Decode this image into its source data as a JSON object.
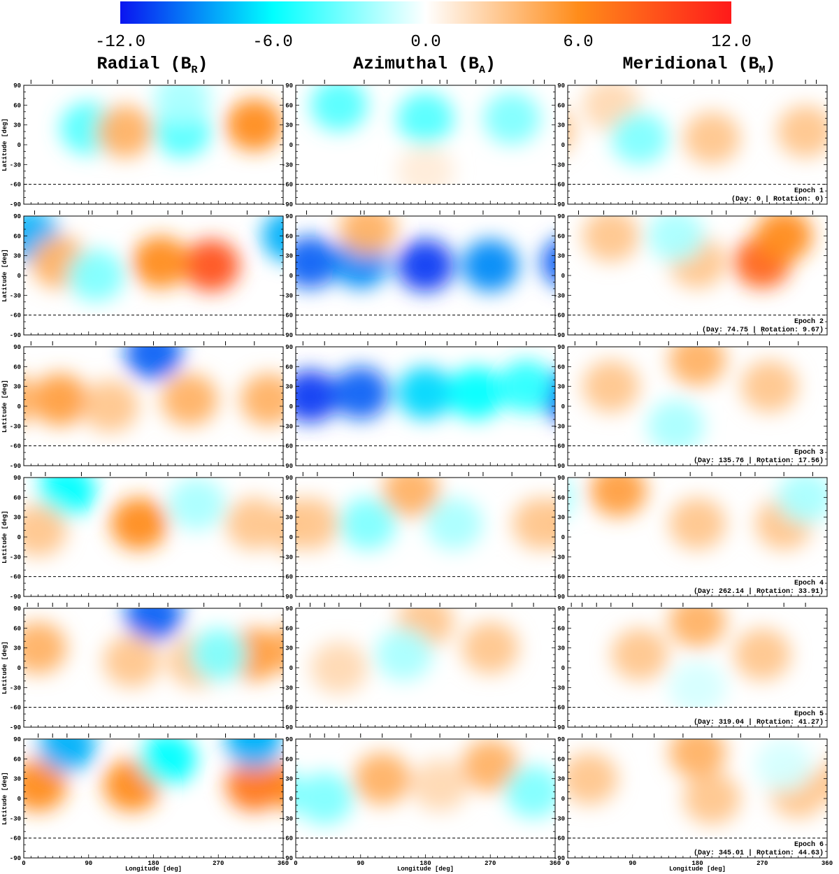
{
  "colorbar": {
    "ticks": [
      "-12.0",
      "-6.0",
      "0.0",
      "6.0",
      "12.0"
    ],
    "tick_values": [
      -12,
      -6,
      0,
      6,
      12
    ],
    "range": [
      -12,
      12
    ],
    "colors": {
      "negative_max": "#0a14f0",
      "mid_negative": "#00ffff",
      "zero": "#ffffff",
      "mid_positive": "#ff8c1a",
      "positive_max": "#ff1a1a"
    }
  },
  "columns": [
    {
      "title": "Radial (B",
      "subscript": "R",
      "suffix": ")"
    },
    {
      "title": "Azimuthal (B",
      "subscript": "A",
      "suffix": ")"
    },
    {
      "title": "Meridional (B",
      "subscript": "M",
      "suffix": ")"
    }
  ],
  "axes": {
    "ylabel": "Latitude [deg]",
    "xlabel": "Longitude [deg]",
    "yticks": [
      "90",
      "60",
      "30",
      "0",
      "-30",
      "-60",
      "-90"
    ],
    "xticks": [
      "0",
      "90",
      "180",
      "270",
      "360"
    ],
    "ylim": [
      -90,
      90
    ],
    "xlim": [
      0,
      360
    ],
    "dashed_latitude": -60
  },
  "epochs": [
    {
      "name": "Epoch 1",
      "detail": "(Day: 0 | Rotation: 0)"
    },
    {
      "name": "Epoch 2",
      "detail": "(Day: 74.75 | Rotation: 9.67)"
    },
    {
      "name": "Epoch 3",
      "detail": "(Day: 135.76 | Rotation: 17.56)"
    },
    {
      "name": "Epoch 4",
      "detail": "(Day: 262.14 | Rotation: 33.91)"
    },
    {
      "name": "Epoch 5",
      "detail": "(Day: 319.04 | Rotation: 41.27)"
    },
    {
      "name": "Epoch 6",
      "detail": "(Day: 345.01 | Rotation: 44.63)"
    }
  ],
  "chart_data": {
    "type": "heatmap",
    "value_range": [
      -12,
      12
    ],
    "x_range": [
      0,
      360
    ],
    "y_range": [
      -90,
      90
    ],
    "observation_phase_ticks": [
      [
        10,
        40,
        95,
        130,
        175,
        200,
        210,
        250,
        275,
        285,
        330,
        345
      ],
      [
        15,
        50,
        90,
        95,
        130,
        150,
        200,
        220,
        260,
        310,
        340
      ],
      [
        10,
        40,
        100,
        140,
        180,
        210,
        250,
        280,
        320
      ],
      [
        10,
        30,
        80,
        120,
        170,
        200,
        240,
        260,
        300,
        340
      ],
      [
        5,
        20,
        40,
        60,
        90,
        130,
        160,
        200,
        250,
        300,
        330
      ],
      [
        20,
        40,
        60,
        90,
        120,
        160,
        200,
        240,
        280,
        320,
        350
      ]
    ],
    "maps": [
      [
        [
          {
            "lon": 90,
            "lat": 25,
            "v": -4
          },
          {
            "lon": 140,
            "lat": 20,
            "v": 4
          },
          {
            "lon": 220,
            "lat": 20,
            "v": -4
          },
          {
            "lon": 320,
            "lat": 30,
            "v": 6
          },
          {
            "lon": 220,
            "lat": 70,
            "v": -2
          }
        ],
        [
          {
            "lon": 180,
            "lat": 40,
            "v": -4
          },
          {
            "lon": 60,
            "lat": 60,
            "v": -4
          },
          {
            "lon": 300,
            "lat": 40,
            "v": -3
          },
          {
            "lon": 180,
            "lat": -40,
            "v": 1
          }
        ],
        [
          {
            "lon": 60,
            "lat": 60,
            "v": 2
          },
          {
            "lon": 200,
            "lat": 10,
            "v": 3
          },
          {
            "lon": 330,
            "lat": 20,
            "v": 3
          },
          {
            "lon": 100,
            "lat": 10,
            "v": -3
          }
        ]
      ],
      [
        [
          {
            "lon": 10,
            "lat": 60,
            "v": -8
          },
          {
            "lon": 260,
            "lat": 15,
            "v": 9
          },
          {
            "lon": 190,
            "lat": 20,
            "v": 6
          },
          {
            "lon": 50,
            "lat": 20,
            "v": 4
          },
          {
            "lon": 100,
            "lat": 0,
            "v": -3
          }
        ],
        [
          {
            "lon": 180,
            "lat": 15,
            "v": -11
          },
          {
            "lon": 20,
            "lat": 20,
            "v": -10
          },
          {
            "lon": 90,
            "lat": 20,
            "v": -9
          },
          {
            "lon": 270,
            "lat": 15,
            "v": -9
          },
          {
            "lon": 100,
            "lat": 70,
            "v": 4
          }
        ],
        [
          {
            "lon": 270,
            "lat": 20,
            "v": 8
          },
          {
            "lon": 300,
            "lat": 60,
            "v": 6
          },
          {
            "lon": 180,
            "lat": 20,
            "v": 3
          },
          {
            "lon": 60,
            "lat": 60,
            "v": 3
          },
          {
            "lon": 150,
            "lat": 60,
            "v": -2
          }
        ]
      ],
      [
        [
          {
            "lon": 180,
            "lat": 80,
            "v": -10
          },
          {
            "lon": 50,
            "lat": 10,
            "v": 5
          },
          {
            "lon": 230,
            "lat": 10,
            "v": 4
          },
          {
            "lon": 340,
            "lat": 10,
            "v": 4
          },
          {
            "lon": 120,
            "lat": 0,
            "v": 3
          }
        ],
        [
          {
            "lon": 20,
            "lat": 15,
            "v": -11
          },
          {
            "lon": 90,
            "lat": 20,
            "v": -10
          },
          {
            "lon": 180,
            "lat": 20,
            "v": -7
          },
          {
            "lon": 250,
            "lat": 20,
            "v": -6
          },
          {
            "lon": 320,
            "lat": 30,
            "v": -5
          }
        ],
        [
          {
            "lon": 180,
            "lat": 70,
            "v": 4
          },
          {
            "lon": 60,
            "lat": 30,
            "v": 3
          },
          {
            "lon": 280,
            "lat": 30,
            "v": 3
          },
          {
            "lon": 150,
            "lat": -30,
            "v": -2
          }
        ]
      ],
      [
        [
          {
            "lon": 60,
            "lat": 70,
            "v": -6
          },
          {
            "lon": 160,
            "lat": 20,
            "v": 6
          },
          {
            "lon": 20,
            "lat": 10,
            "v": 3
          },
          {
            "lon": 320,
            "lat": 20,
            "v": 3
          },
          {
            "lon": 240,
            "lat": 50,
            "v": -2
          }
        ],
        [
          {
            "lon": 160,
            "lat": 70,
            "v": 4
          },
          {
            "lon": 20,
            "lat": 20,
            "v": 3
          },
          {
            "lon": 340,
            "lat": 20,
            "v": 3
          },
          {
            "lon": 100,
            "lat": 20,
            "v": -3
          },
          {
            "lon": 220,
            "lat": 20,
            "v": -2
          }
        ],
        [
          {
            "lon": 70,
            "lat": 70,
            "v": 5
          },
          {
            "lon": 180,
            "lat": 20,
            "v": 3
          },
          {
            "lon": 300,
            "lat": 20,
            "v": 3
          },
          {
            "lon": 330,
            "lat": 60,
            "v": -2
          }
        ]
      ],
      [
        [
          {
            "lon": 180,
            "lat": 80,
            "v": -10
          },
          {
            "lon": 20,
            "lat": 30,
            "v": 4
          },
          {
            "lon": 320,
            "lat": 20,
            "v": 5
          },
          {
            "lon": 150,
            "lat": 10,
            "v": 3
          },
          {
            "lon": 240,
            "lat": 10,
            "v": 3
          },
          {
            "lon": 270,
            "lat": 20,
            "v": -3
          }
        ],
        [
          {
            "lon": 180,
            "lat": 70,
            "v": 3
          },
          {
            "lon": 270,
            "lat": 30,
            "v": 3
          },
          {
            "lon": 150,
            "lat": 20,
            "v": -2
          },
          {
            "lon": 60,
            "lat": 0,
            "v": 2
          }
        ],
        [
          {
            "lon": 180,
            "lat": 70,
            "v": 4
          },
          {
            "lon": 100,
            "lat": 20,
            "v": 3
          },
          {
            "lon": 270,
            "lat": 20,
            "v": 3
          },
          {
            "lon": 180,
            "lat": -30,
            "v": -1
          }
        ]
      ],
      [
        [
          {
            "lon": 20,
            "lat": 20,
            "v": 6
          },
          {
            "lon": 150,
            "lat": 20,
            "v": 6
          },
          {
            "lon": 320,
            "lat": 20,
            "v": 7
          },
          {
            "lon": 200,
            "lat": 60,
            "v": -6
          },
          {
            "lon": 60,
            "lat": 80,
            "v": -8
          },
          {
            "lon": 320,
            "lat": 85,
            "v": -8
          }
        ],
        [
          {
            "lon": 120,
            "lat": 30,
            "v": 4
          },
          {
            "lon": 270,
            "lat": 50,
            "v": 4
          },
          {
            "lon": 40,
            "lat": 0,
            "v": -3
          },
          {
            "lon": 330,
            "lat": 10,
            "v": -3
          },
          {
            "lon": 200,
            "lat": 20,
            "v": 2
          }
        ],
        [
          {
            "lon": 180,
            "lat": 70,
            "v": 4
          },
          {
            "lon": 30,
            "lat": 30,
            "v": 3
          },
          {
            "lon": 200,
            "lat": 0,
            "v": 3
          },
          {
            "lon": 320,
            "lat": 10,
            "v": 3
          },
          {
            "lon": 300,
            "lat": 50,
            "v": -1
          }
        ]
      ]
    ]
  }
}
